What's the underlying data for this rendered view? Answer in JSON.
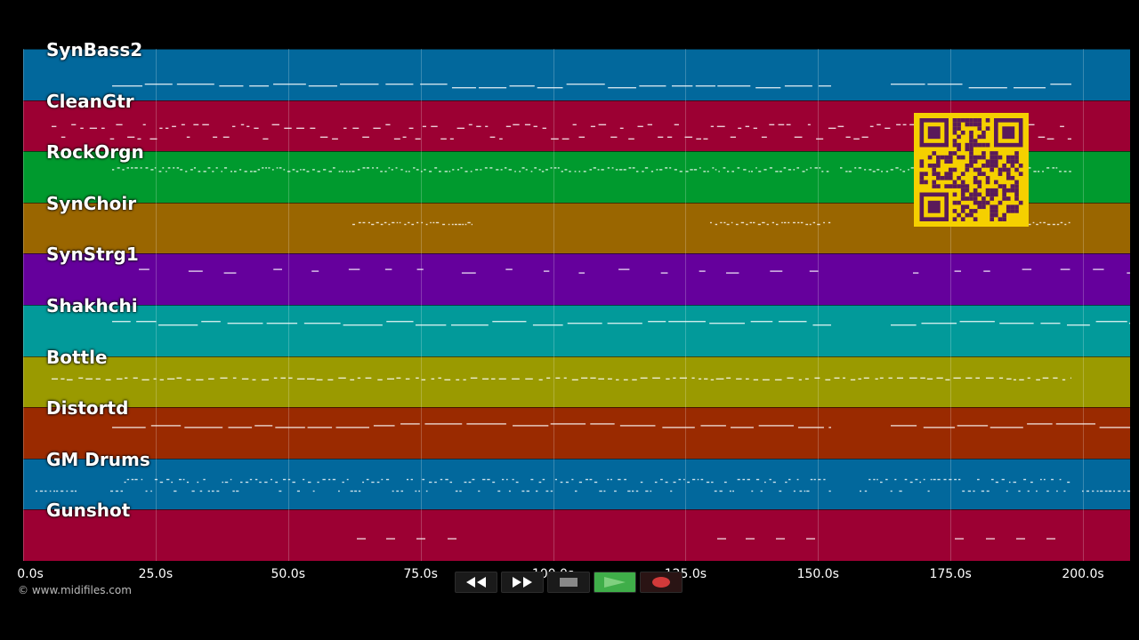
{
  "tracks": [
    {
      "name": "SynBass2",
      "color": "#02689c"
    },
    {
      "name": "CleanGtr",
      "color": "#9c0033"
    },
    {
      "name": "RockOrgn",
      "color": "#009a2e"
    },
    {
      "name": "SynChoir",
      "color": "#9a6600"
    },
    {
      "name": "SynStrg1",
      "color": "#65009c"
    },
    {
      "name": "Shakhchi",
      "color": "#029a9a"
    },
    {
      "name": "Bottle",
      "color": "#9a9a00"
    },
    {
      "name": "Distortd",
      "color": "#9a2a00"
    },
    {
      "name": "GM Drums",
      "color": "#02689c"
    },
    {
      "name": "Gunshot",
      "color": "#9c0033"
    }
  ],
  "axis": {
    "ticks": [
      "0.0s",
      "25.0s",
      "50.0s",
      "75.0s",
      "100.0s",
      "125.0s",
      "150.0s",
      "175.0s",
      "200.0s"
    ],
    "max_seconds": 210
  },
  "credit": "© www.midifiles.com",
  "controls": [
    {
      "name": "rewind-button",
      "icon": "rewind-icon"
    },
    {
      "name": "fast-forward-button",
      "icon": "fast-forward-icon"
    },
    {
      "name": "stop-button",
      "icon": "stop-icon"
    },
    {
      "name": "play-button",
      "icon": "play-icon"
    },
    {
      "name": "record-button",
      "icon": "record-icon"
    }
  ],
  "colors": {
    "play": "#3fae49",
    "record": "#d23a3a",
    "qr": "#f5d000",
    "qr_dark": "#5a1a5a"
  }
}
